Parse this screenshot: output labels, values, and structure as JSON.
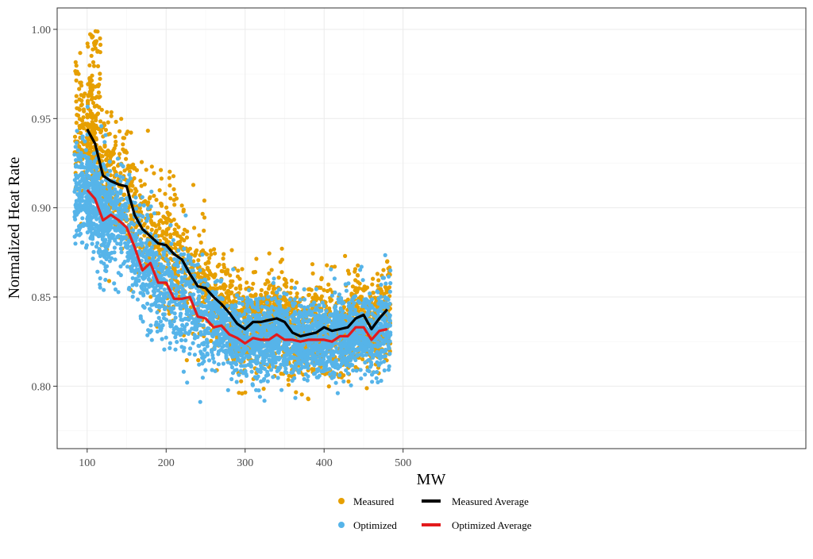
{
  "chart_data": {
    "type": "scatter",
    "xlabel": "MW",
    "ylabel": "Normalized Heat Rate",
    "xlim": [
      62,
      1010
    ],
    "ylim": [
      0.765,
      1.012
    ],
    "x_ticks": [
      100,
      200,
      300,
      400,
      500
    ],
    "y_ticks": [
      0.8,
      0.85,
      0.9,
      0.95,
      1.0
    ],
    "x_tick_labels": [
      "100",
      "200",
      "300",
      "400",
      "500"
    ],
    "y_tick_labels": [
      "0.80",
      "0.85",
      "0.90",
      "0.95",
      "1.00"
    ],
    "grid": true,
    "legend_position": "bottom",
    "colors": {
      "measured": "#E69F00",
      "optimized": "#56B4E9",
      "measured_average": "#000000",
      "optimized_average": "#E31A1C"
    },
    "series": [
      {
        "name": "Measured",
        "type": "scatter",
        "x_range": [
          84,
          484
        ],
        "trend_x": [
          100,
          110,
          120,
          130,
          140,
          150,
          160,
          170,
          180,
          190,
          200,
          210,
          220,
          230,
          240,
          250,
          260,
          270,
          280,
          290,
          300,
          310,
          320,
          330,
          340,
          350,
          360,
          370,
          380,
          390,
          400,
          410,
          420,
          430,
          440,
          450,
          460,
          470,
          480
        ],
        "trend_y": [
          0.944,
          0.936,
          0.918,
          0.915,
          0.913,
          0.912,
          0.896,
          0.888,
          0.884,
          0.88,
          0.879,
          0.874,
          0.871,
          0.863,
          0.856,
          0.855,
          0.85,
          0.846,
          0.841,
          0.835,
          0.832,
          0.836,
          0.836,
          0.837,
          0.838,
          0.836,
          0.83,
          0.828,
          0.829,
          0.83,
          0.833,
          0.831,
          0.832,
          0.833,
          0.838,
          0.84,
          0.832,
          0.838,
          0.843
        ]
      },
      {
        "name": "Optimized",
        "type": "scatter",
        "x_range": [
          84,
          484
        ],
        "trend_x": [
          100,
          110,
          120,
          130,
          140,
          150,
          160,
          170,
          180,
          190,
          200,
          210,
          220,
          230,
          240,
          250,
          260,
          270,
          280,
          290,
          300,
          310,
          320,
          330,
          340,
          350,
          360,
          370,
          380,
          390,
          400,
          410,
          420,
          430,
          440,
          450,
          460,
          470,
          480
        ],
        "trend_y": [
          0.91,
          0.905,
          0.893,
          0.896,
          0.893,
          0.889,
          0.878,
          0.865,
          0.869,
          0.858,
          0.858,
          0.849,
          0.849,
          0.85,
          0.839,
          0.838,
          0.833,
          0.834,
          0.829,
          0.827,
          0.824,
          0.827,
          0.826,
          0.826,
          0.829,
          0.826,
          0.826,
          0.825,
          0.826,
          0.826,
          0.826,
          0.825,
          0.828,
          0.828,
          0.833,
          0.833,
          0.826,
          0.831,
          0.832
        ]
      },
      {
        "name": "Measured Average",
        "type": "line",
        "x": [
          100,
          110,
          120,
          130,
          140,
          150,
          160,
          170,
          180,
          190,
          200,
          210,
          220,
          230,
          240,
          250,
          260,
          270,
          280,
          290,
          300,
          310,
          320,
          330,
          340,
          350,
          360,
          370,
          380,
          390,
          400,
          410,
          420,
          430,
          440,
          450,
          460,
          470,
          480
        ],
        "y": [
          0.944,
          0.936,
          0.918,
          0.915,
          0.913,
          0.912,
          0.896,
          0.888,
          0.884,
          0.88,
          0.879,
          0.874,
          0.871,
          0.863,
          0.856,
          0.855,
          0.85,
          0.846,
          0.841,
          0.835,
          0.832,
          0.836,
          0.836,
          0.837,
          0.838,
          0.836,
          0.83,
          0.828,
          0.829,
          0.83,
          0.833,
          0.831,
          0.832,
          0.833,
          0.838,
          0.84,
          0.832,
          0.838,
          0.843
        ]
      },
      {
        "name": "Optimized Average",
        "type": "line",
        "x": [
          100,
          110,
          120,
          130,
          140,
          150,
          160,
          170,
          180,
          190,
          200,
          210,
          220,
          230,
          240,
          250,
          260,
          270,
          280,
          290,
          300,
          310,
          320,
          330,
          340,
          350,
          360,
          370,
          380,
          390,
          400,
          410,
          420,
          430,
          440,
          450,
          460,
          470,
          480
        ],
        "y": [
          0.91,
          0.905,
          0.893,
          0.896,
          0.893,
          0.889,
          0.878,
          0.865,
          0.869,
          0.858,
          0.858,
          0.849,
          0.849,
          0.85,
          0.839,
          0.838,
          0.833,
          0.834,
          0.829,
          0.827,
          0.824,
          0.827,
          0.826,
          0.826,
          0.829,
          0.826,
          0.826,
          0.825,
          0.826,
          0.826,
          0.826,
          0.825,
          0.828,
          0.828,
          0.833,
          0.833,
          0.826,
          0.831,
          0.832
        ]
      }
    ],
    "legend": [
      {
        "label": "Measured",
        "symbol": "point",
        "color": "#E69F00"
      },
      {
        "label": "Measured Average",
        "symbol": "line",
        "color": "#000000"
      },
      {
        "label": "Optimized",
        "symbol": "point",
        "color": "#56B4E9"
      },
      {
        "label": "Optimized Average",
        "symbol": "line",
        "color": "#E31A1C"
      }
    ]
  }
}
